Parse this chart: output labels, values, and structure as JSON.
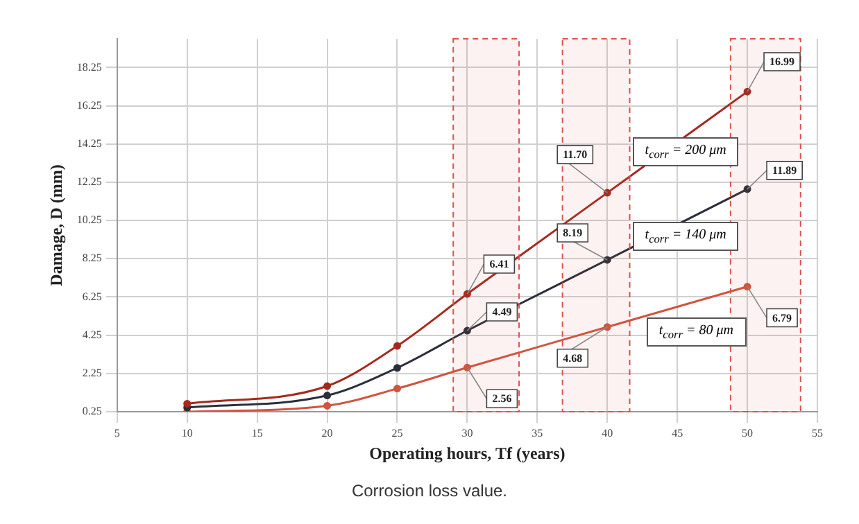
{
  "chart_data": {
    "type": "line",
    "xlabel": "Operating hours, Tf (years)",
    "ylabel": "Damage, D (mm)",
    "x": [
      10,
      20,
      25,
      30,
      40,
      50
    ],
    "series": [
      {
        "name": "t$_{corr}$ = 200 μm",
        "color": "#a52a1e",
        "values": [
          0.67,
          1.59,
          3.69,
          6.41,
          11.7,
          16.99
        ],
        "value_labels": [
          null,
          null,
          null,
          "6.41",
          "11.70",
          "16.99"
        ]
      },
      {
        "name": "t$_{corr}$ = 140 μm",
        "color": "#2b2f3a",
        "values": [
          0.47,
          1.1,
          2.54,
          4.49,
          8.19,
          11.89
        ],
        "value_labels": [
          null,
          null,
          null,
          "4.49",
          "8.19",
          "11.89"
        ]
      },
      {
        "name": "t$_{corr}$ = 80 μm",
        "color": "#d0553f",
        "values": [
          0.25,
          0.56,
          1.46,
          2.56,
          4.68,
          6.79
        ],
        "value_labels": [
          null,
          null,
          null,
          "2.56",
          "4.68",
          "6.79"
        ]
      }
    ],
    "xlim": [
      5,
      55
    ],
    "xticks": [
      5,
      10,
      15,
      20,
      25,
      30,
      35,
      40,
      45,
      50,
      55
    ],
    "ylim": [
      0.25,
      19.75
    ],
    "yticks": [
      0.25,
      2.25,
      4.25,
      6.25,
      8.25,
      10.25,
      12.25,
      14.25,
      16.25,
      18.25
    ],
    "bands": [
      {
        "axis": "x",
        "from": 29,
        "to": 33.7,
        "color": "#d9534f"
      },
      {
        "axis": "x",
        "from": 36.8,
        "to": 41.6,
        "color": "#d9534f"
      },
      {
        "axis": "x",
        "from": 48.8,
        "to": 53.8,
        "color": "#d9534f"
      }
    ],
    "grid": true,
    "marker": "circle",
    "line_style": "solid",
    "legend": false,
    "annotations": [
      "Corrosion loss value."
    ]
  }
}
